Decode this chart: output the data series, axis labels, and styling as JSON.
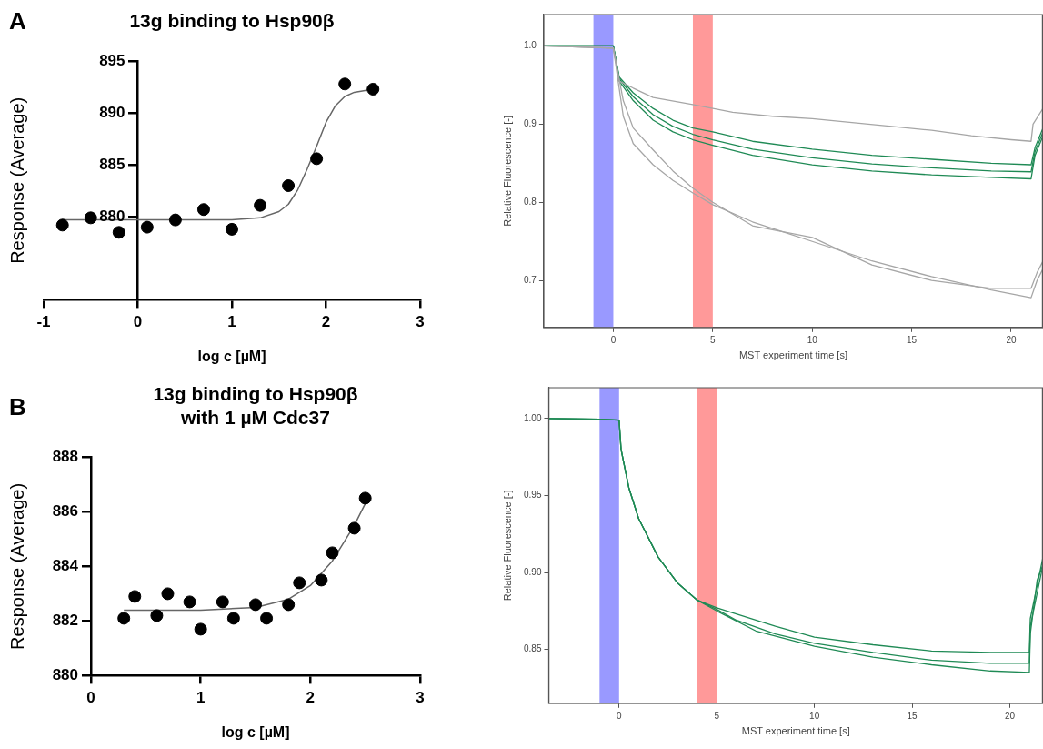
{
  "chart_data": [
    {
      "type": "scatter",
      "title": "13g binding to Hsp90β",
      "xlabel": "log c [µM]",
      "ylabel": "Response (Average)",
      "annotations": [
        "A"
      ],
      "xlim": [
        -1,
        3
      ],
      "xticks": [
        -1,
        0,
        1,
        2,
        3
      ],
      "ylim": [
        872,
        895
      ],
      "yticks": [
        880,
        885,
        890,
        895
      ],
      "grid": false,
      "legend": false,
      "series": [
        {
          "type": "scatter",
          "marker": "circle",
          "color": "#000000",
          "x": [
            -0.8,
            -0.5,
            -0.2,
            0.1,
            0.4,
            0.7,
            1.0,
            1.3,
            1.6,
            1.9,
            2.2,
            2.5
          ],
          "values": [
            879.2,
            879.9,
            878.5,
            879.0,
            879.7,
            880.7,
            878.8,
            881.1,
            883.0,
            885.6,
            892.8,
            892.3
          ]
        },
        {
          "type": "line",
          "marker": "none",
          "color": "#666666",
          "x": [
            -0.8,
            0.5,
            1.0,
            1.3,
            1.5,
            1.6,
            1.7,
            1.8,
            1.9,
            2.0,
            2.1,
            2.2,
            2.3,
            2.5
          ],
          "values": [
            879.7,
            879.7,
            879.7,
            879.9,
            880.5,
            881.2,
            882.6,
            884.6,
            886.8,
            889.1,
            890.7,
            891.6,
            892.0,
            892.3
          ]
        }
      ]
    },
    {
      "type": "line",
      "xlabel": "MST experiment time [s]",
      "ylabel": "Relative Fluorescence [-]",
      "xlim": [
        -3.5,
        21.6
      ],
      "xticks": [
        0,
        5,
        10,
        15,
        20
      ],
      "ylim": [
        0.64,
        1.04
      ],
      "yticks": [
        0.7,
        0.8,
        0.9,
        {
          "value": 1,
          "label": "1.0"
        }
      ],
      "grid": false,
      "legend": false,
      "bands": [
        {
          "axis": "x",
          "from": -1,
          "to": 0,
          "color": "#9999ff"
        },
        {
          "axis": "x",
          "from": 4,
          "to": 5,
          "color": "#ff9999"
        }
      ],
      "series": [
        {
          "color": "#a6a6a6",
          "x": [
            -3.5,
            -1,
            0,
            0.3,
            1,
            2,
            4,
            6,
            8,
            10,
            12,
            14,
            16,
            18,
            20,
            21,
            21.1,
            21.6
          ],
          "values": [
            1.0,
            0.998,
            0.997,
            0.955,
            0.946,
            0.934,
            0.925,
            0.915,
            0.91,
            0.907,
            0.902,
            0.897,
            0.892,
            0.885,
            0.88,
            0.878,
            0.9,
            0.92
          ]
        },
        {
          "color": "#a6a6a6",
          "x": [
            -3.5,
            -1,
            0,
            0.5,
            1,
            2,
            3,
            4,
            5,
            7,
            10,
            13,
            16,
            19,
            21,
            21.3,
            21.6
          ],
          "values": [
            1.0,
            0.998,
            0.997,
            0.93,
            0.895,
            0.867,
            0.84,
            0.818,
            0.8,
            0.77,
            0.755,
            0.72,
            0.7,
            0.69,
            0.69,
            0.71,
            0.725
          ]
        },
        {
          "color": "#a6a6a6",
          "x": [
            -3.5,
            -1,
            0,
            0.5,
            1,
            2,
            3,
            4,
            5,
            7,
            10,
            13,
            16,
            19,
            21,
            21.3,
            21.6
          ],
          "values": [
            1.0,
            0.998,
            0.997,
            0.91,
            0.875,
            0.848,
            0.828,
            0.812,
            0.797,
            0.775,
            0.75,
            0.725,
            0.705,
            0.688,
            0.678,
            0.7,
            0.715
          ]
        },
        {
          "color": "#1f8a55",
          "x": [
            -3.5,
            -1,
            0,
            0.3,
            1,
            2,
            3,
            4,
            5,
            7,
            10,
            13,
            16,
            19,
            21,
            21.2,
            21.6
          ],
          "values": [
            1.0,
            1.0,
            1.0,
            0.96,
            0.94,
            0.92,
            0.905,
            0.895,
            0.89,
            0.878,
            0.868,
            0.86,
            0.855,
            0.85,
            0.848,
            0.87,
            0.895
          ]
        },
        {
          "color": "#1f8a55",
          "x": [
            -3.5,
            -1,
            0,
            0.3,
            1,
            2,
            3,
            4,
            5,
            7,
            10,
            13,
            16,
            19,
            21,
            21.2,
            21.6
          ],
          "values": [
            1.0,
            1.0,
            1.0,
            0.958,
            0.935,
            0.912,
            0.897,
            0.887,
            0.88,
            0.868,
            0.857,
            0.849,
            0.844,
            0.84,
            0.839,
            0.865,
            0.89
          ]
        },
        {
          "color": "#1f8a55",
          "x": [
            -3.5,
            -1,
            0,
            0.3,
            1,
            2,
            3,
            4,
            5,
            7,
            10,
            13,
            16,
            19,
            21,
            21.2,
            21.6
          ],
          "values": [
            1.0,
            1.0,
            1.0,
            0.955,
            0.93,
            0.905,
            0.89,
            0.88,
            0.873,
            0.86,
            0.848,
            0.84,
            0.835,
            0.832,
            0.83,
            0.86,
            0.885
          ]
        }
      ]
    },
    {
      "type": "scatter",
      "title": "13g binding to Hsp90β\nwith 1 µM Cdc37",
      "xlabel": "log c [µM]",
      "ylabel": "Response (Average)",
      "annotations": [
        "B"
      ],
      "xlim": [
        0,
        3
      ],
      "xticks": [
        0,
        1,
        2,
        3
      ],
      "ylim": [
        880,
        888
      ],
      "yticks": [
        880,
        882,
        884,
        886,
        888
      ],
      "grid": false,
      "legend": false,
      "series": [
        {
          "type": "scatter",
          "marker": "circle",
          "color": "#000000",
          "x": [
            0.3,
            0.4,
            0.6,
            0.7,
            0.9,
            1.0,
            1.2,
            1.3,
            1.5,
            1.6,
            1.8,
            1.9,
            2.1,
            2.2,
            2.4,
            2.5
          ],
          "values": [
            882.1,
            882.9,
            882.2,
            883.0,
            882.7,
            881.7,
            882.7,
            882.1,
            882.6,
            882.1,
            882.6,
            883.4,
            883.5,
            884.5,
            885.4,
            886.5
          ]
        },
        {
          "type": "line",
          "marker": "none",
          "color": "#666666",
          "x": [
            0.3,
            1.0,
            1.5,
            1.8,
            2.0,
            2.2,
            2.4,
            2.5
          ],
          "values": [
            882.4,
            882.4,
            882.5,
            882.8,
            883.3,
            884.2,
            885.5,
            886.3
          ]
        }
      ]
    },
    {
      "type": "line",
      "xlabel": "MST experiment time [s]",
      "ylabel": "Relative Fluorescence [-]",
      "xlim": [
        -3.6,
        21.7
      ],
      "xticks": [
        0,
        5,
        10,
        15,
        20
      ],
      "ylim": [
        0.815,
        1.02
      ],
      "yticks": [
        {
          "value": 0.85,
          "label": "0.85"
        },
        {
          "value": 0.9,
          "label": "0.90"
        },
        {
          "value": 0.95,
          "label": "0.95"
        },
        {
          "value": 1,
          "label": "1.00"
        }
      ],
      "grid": false,
      "legend": false,
      "bands": [
        {
          "axis": "x",
          "from": -1,
          "to": 0,
          "color": "#9999ff"
        },
        {
          "axis": "x",
          "from": 4,
          "to": 5,
          "color": "#ff9999"
        }
      ],
      "series": [
        {
          "color": "#1f8a55",
          "x": [
            -3.6,
            -1,
            0,
            0.1,
            0.5,
            1,
            2,
            3,
            4,
            5,
            6,
            8,
            10,
            13,
            16,
            19,
            21,
            21.05,
            21.7
          ],
          "values": [
            1.0,
            0.9995,
            0.999,
            0.98,
            0.955,
            0.935,
            0.91,
            0.893,
            0.882,
            0.877,
            0.873,
            0.865,
            0.858,
            0.853,
            0.849,
            0.848,
            0.848,
            0.87,
            0.91
          ]
        },
        {
          "color": "#1f8a55",
          "x": [
            -3.6,
            -1,
            0,
            0.1,
            0.5,
            1,
            2,
            3,
            4,
            5,
            6,
            8,
            10,
            13,
            16,
            19,
            21,
            21.05,
            21.7
          ],
          "values": [
            1.0,
            0.9995,
            0.999,
            0.98,
            0.955,
            0.935,
            0.91,
            0.893,
            0.882,
            0.876,
            0.869,
            0.86,
            0.854,
            0.848,
            0.843,
            0.841,
            0.841,
            0.865,
            0.905
          ]
        },
        {
          "color": "#1f8a55",
          "x": [
            -3.6,
            -1,
            0,
            0.1,
            0.5,
            1,
            2,
            3,
            4,
            5,
            7,
            10,
            13,
            16,
            19,
            21,
            21.05,
            21.4,
            21.7
          ],
          "values": [
            1.0,
            0.9995,
            0.999,
            0.98,
            0.955,
            0.935,
            0.91,
            0.893,
            0.882,
            0.875,
            0.862,
            0.852,
            0.845,
            0.84,
            0.836,
            0.835,
            0.86,
            0.895,
            0.905
          ]
        }
      ]
    }
  ]
}
